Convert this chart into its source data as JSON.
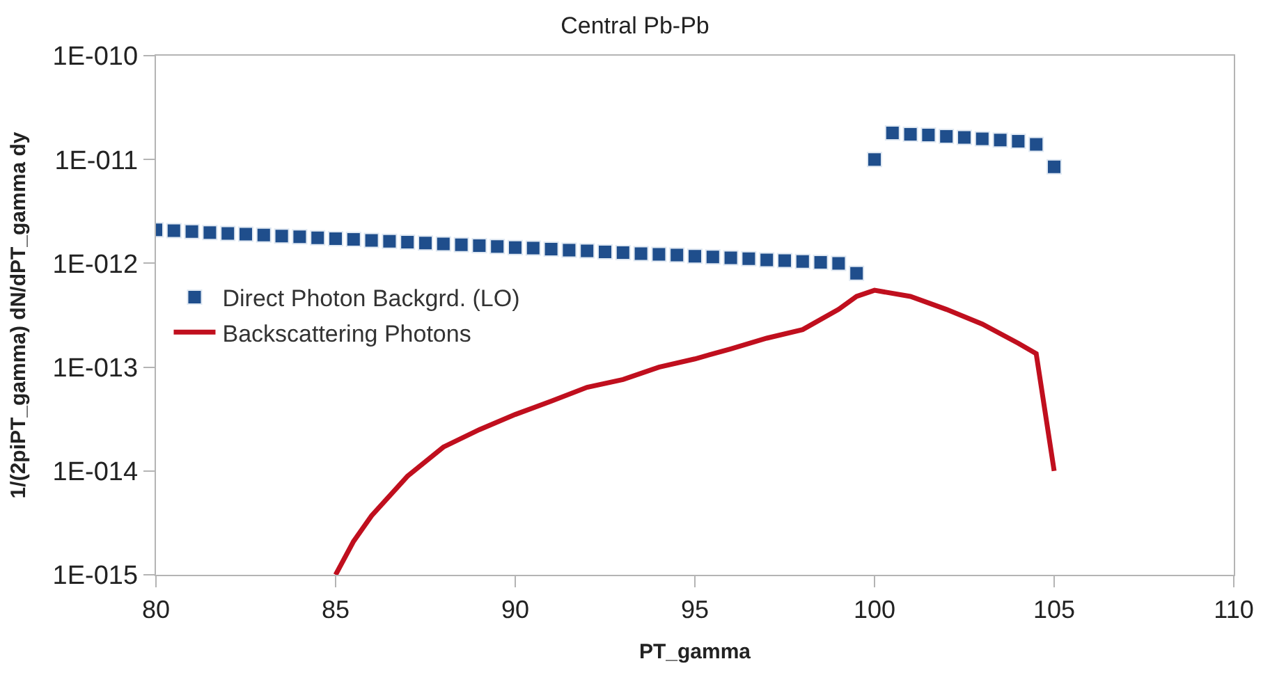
{
  "chart_data": {
    "type": "scatter",
    "title": "Central Pb-Pb",
    "xlabel": "PT_gamma",
    "ylabel": "1/(2piPT_gamma) dN/dPT_gamma dy",
    "log": "y",
    "grid": false,
    "legend": "left",
    "xlim": [
      80,
      110
    ],
    "xticks": [
      80,
      85,
      90,
      95,
      100,
      105,
      110
    ],
    "ylim": [
      1e-15,
      1e-10
    ],
    "yticks": [
      {
        "value": 1e-15,
        "label": "1E-015"
      },
      {
        "value": 1e-14,
        "label": "1E-014"
      },
      {
        "value": 1e-13,
        "label": "1E-013"
      },
      {
        "value": 1e-12,
        "label": "1E-012"
      },
      {
        "value": 1e-11,
        "label": "1E-011"
      },
      {
        "value": 1e-10,
        "label": "1E-010"
      }
    ],
    "series": [
      {
        "name": "Direct Photon Backgrd. (LO)",
        "marker": "square",
        "color": "#1f4e8c",
        "x": [
          80,
          80.5,
          81,
          81.5,
          82,
          82.5,
          83,
          83.5,
          84,
          84.5,
          85,
          85.5,
          86,
          86.5,
          87,
          87.5,
          88,
          88.5,
          89,
          89.5,
          90,
          90.5,
          91,
          91.5,
          92,
          92.5,
          93,
          93.5,
          94,
          94.5,
          95,
          95.5,
          96,
          96.5,
          97,
          97.5,
          98,
          98.5,
          99,
          99.5,
          100,
          100.5,
          101,
          101.5,
          102,
          102.5,
          103,
          103.5,
          104,
          104.5,
          105
        ],
        "values": [
          2.1e-12,
          2.06e-12,
          2.02e-12,
          1.98e-12,
          1.94e-12,
          1.91e-12,
          1.87e-12,
          1.83e-12,
          1.8e-12,
          1.76e-12,
          1.73e-12,
          1.7e-12,
          1.66e-12,
          1.63e-12,
          1.6e-12,
          1.57e-12,
          1.54e-12,
          1.51e-12,
          1.48e-12,
          1.45e-12,
          1.42e-12,
          1.4e-12,
          1.37e-12,
          1.34e-12,
          1.32e-12,
          1.29e-12,
          1.27e-12,
          1.24e-12,
          1.22e-12,
          1.2e-12,
          1.17e-12,
          1.15e-12,
          1.13e-12,
          1.11e-12,
          1.08e-12,
          1.06e-12,
          1.04e-12,
          1.02e-12,
          1e-12,
          8e-13,
          1e-11,
          1.8e-11,
          1.75e-11,
          1.72e-11,
          1.67e-11,
          1.63e-11,
          1.58e-11,
          1.54e-11,
          1.5e-11,
          1.4e-11,
          8.5e-12
        ]
      },
      {
        "name": "Backscattering Photons",
        "type": "line",
        "marker": "none",
        "line_style": "solid",
        "color": "#c00f1e",
        "x": [
          85,
          85.5,
          86,
          87,
          88,
          89,
          90,
          91,
          92,
          93,
          94,
          95,
          96,
          97,
          98,
          99,
          99.5,
          100,
          101,
          102,
          103,
          104,
          104.5,
          105
        ],
        "values": [
          1e-15,
          2.1e-15,
          3.7e-15,
          8.9e-15,
          1.7e-14,
          2.5e-14,
          3.5e-14,
          4.7e-14,
          6.4e-14,
          7.6e-14,
          1e-13,
          1.2e-13,
          1.5e-13,
          1.9e-13,
          2.3e-13,
          3.6e-13,
          4.8e-13,
          5.5e-13,
          4.8e-13,
          3.6e-13,
          2.6e-13,
          1.7e-13,
          1.35e-13,
          1e-14
        ]
      }
    ]
  }
}
